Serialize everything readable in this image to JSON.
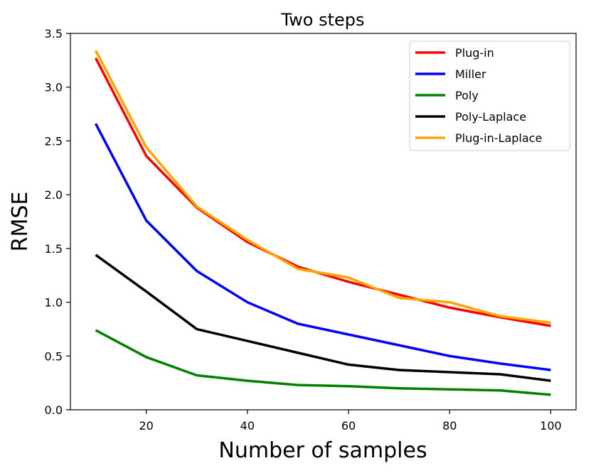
{
  "chart_data": {
    "type": "line",
    "title": "Two steps",
    "xlabel": "Number of samples",
    "ylabel": "RMSE",
    "xlim": [
      5,
      105
    ],
    "ylim": [
      0,
      3.5
    ],
    "xticks": [
      20,
      40,
      60,
      80,
      100
    ],
    "yticks": [
      0.0,
      0.5,
      1.0,
      1.5,
      2.0,
      2.5,
      3.0,
      3.5
    ],
    "xtick_labels": [
      "20",
      "40",
      "60",
      "80",
      "100"
    ],
    "ytick_labels": [
      "0.0",
      "0.5",
      "1.0",
      "1.5",
      "2.0",
      "2.5",
      "3.0",
      "3.5"
    ],
    "x": [
      10,
      20,
      30,
      40,
      50,
      60,
      70,
      80,
      90,
      100
    ],
    "grid": false,
    "legend_position": "top-right",
    "series": [
      {
        "name": "Plug-in",
        "color": "#ff0000",
        "values": [
          3.27,
          2.36,
          1.88,
          1.56,
          1.33,
          1.19,
          1.07,
          0.95,
          0.86,
          0.78
        ]
      },
      {
        "name": "Miller",
        "color": "#0000ff",
        "values": [
          2.66,
          1.76,
          1.29,
          1.0,
          0.8,
          0.7,
          0.6,
          0.5,
          0.43,
          0.37
        ]
      },
      {
        "name": "Poly",
        "color": "#008000",
        "values": [
          0.74,
          0.49,
          0.32,
          0.27,
          0.23,
          0.22,
          0.2,
          0.19,
          0.18,
          0.14
        ]
      },
      {
        "name": "Poly-Laplace",
        "color": "#000000",
        "values": [
          1.44,
          1.1,
          0.75,
          0.64,
          0.53,
          0.42,
          0.37,
          0.35,
          0.33,
          0.27
        ]
      },
      {
        "name": "Plug-in-Laplace",
        "color": "#ffa500",
        "values": [
          3.34,
          2.44,
          1.89,
          1.58,
          1.31,
          1.23,
          1.04,
          1.0,
          0.87,
          0.81
        ]
      }
    ]
  }
}
